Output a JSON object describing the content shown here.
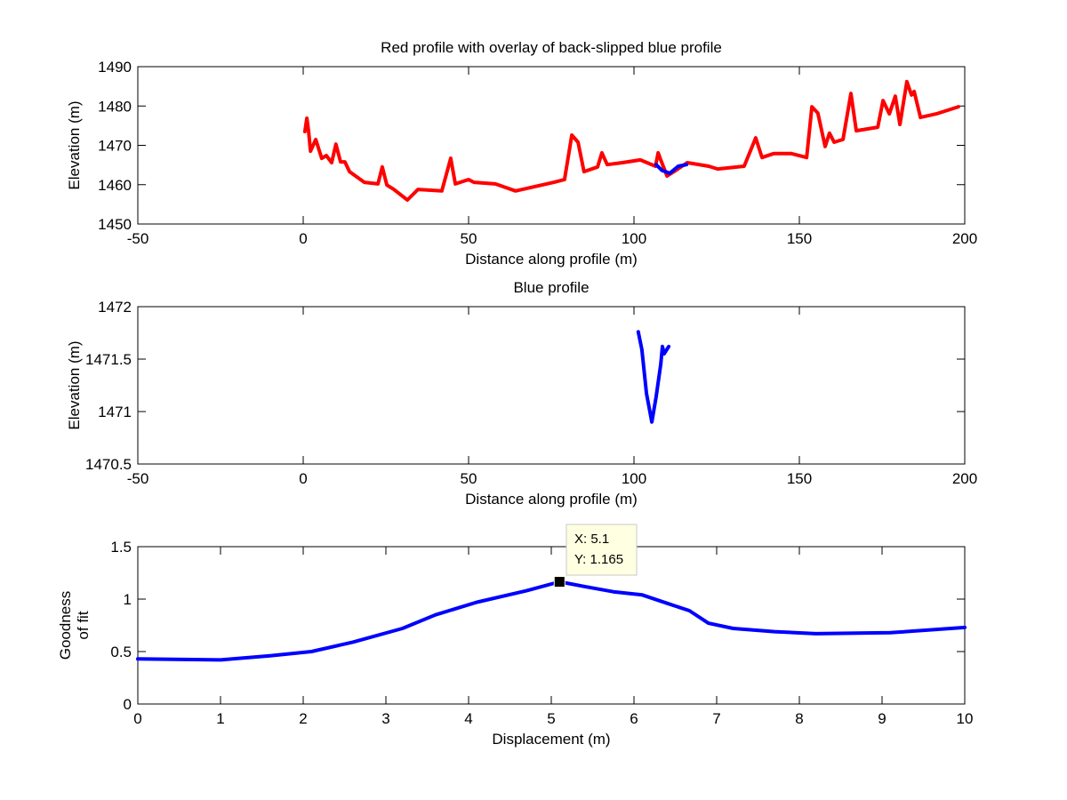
{
  "chart_data": [
    {
      "type": "line",
      "title": "Red profile with overlay of back-slipped blue profile",
      "xlabel": "Distance along profile (m)",
      "ylabel": "Elevation (m)",
      "xlim": [
        -50,
        200
      ],
      "ylim": [
        1450,
        1490
      ],
      "xticks": [
        -50,
        0,
        50,
        100,
        150,
        200
      ],
      "yticks": [
        1450,
        1460,
        1470,
        1480,
        1490
      ],
      "grid": false,
      "series": [
        {
          "name": "red profile",
          "color": "#ff0000",
          "x": [
            0.5,
            1.1,
            1.6,
            2.2,
            3.8,
            5.6,
            7.0,
            8.6,
            9.9,
            11.3,
            12.6,
            14.0,
            18.5,
            22.6,
            23.9,
            25.3,
            27.4,
            31.5,
            34.7,
            41.9,
            44.6,
            46.0,
            50.0,
            51.6,
            58.1,
            64.2,
            75.8,
            79.0,
            81.2,
            83.1,
            84.9,
            89.0,
            90.3,
            91.9,
            96.5,
            101.9,
            106.5,
            107.3,
            108.1,
            110.0,
            112.6,
            116.1,
            122.6,
            125.3,
            133.3,
            136.8,
            138.7,
            142.2,
            147.6,
            152.2,
            153.8,
            155.6,
            157.8,
            159.1,
            160.5,
            163.2,
            165.6,
            167.2,
            173.7,
            175.3,
            177.2,
            179.0,
            180.4,
            182.5,
            183.9,
            184.7,
            186.6,
            191.4,
            198.1
          ],
          "y": [
            1473.5,
            1476.9,
            1473.7,
            1468.5,
            1471.5,
            1466.7,
            1467.4,
            1465.6,
            1470.3,
            1465.8,
            1465.8,
            1463.3,
            1460.6,
            1460.2,
            1464.5,
            1459.9,
            1458.8,
            1456.1,
            1458.8,
            1458.4,
            1466.7,
            1460.2,
            1461.3,
            1460.6,
            1460.2,
            1458.4,
            1460.6,
            1461.3,
            1472.6,
            1470.8,
            1463.3,
            1464.5,
            1468.1,
            1465.1,
            1465.6,
            1466.3,
            1464.7,
            1468.1,
            1466.3,
            1462.2,
            1463.6,
            1465.6,
            1464.7,
            1464.0,
            1464.7,
            1471.9,
            1466.9,
            1467.9,
            1467.9,
            1466.9,
            1479.8,
            1478.2,
            1469.7,
            1473.1,
            1470.8,
            1471.5,
            1483.2,
            1473.7,
            1474.6,
            1481.4,
            1478.0,
            1482.5,
            1475.3,
            1486.2,
            1482.8,
            1483.7,
            1477.1,
            1478.0,
            1479.8
          ]
        },
        {
          "name": "back-slipped blue profile",
          "color": "#0000ff",
          "x": [
            106.7,
            108.5,
            110.8,
            113.4,
            115.9
          ],
          "y": [
            1465.1,
            1463.6,
            1462.9,
            1464.7,
            1465.1
          ]
        }
      ]
    },
    {
      "type": "line",
      "title": "Blue profile",
      "xlabel": "Distance along profile (m)",
      "ylabel": "Elevation (m)",
      "xlim": [
        -50,
        200
      ],
      "ylim": [
        1470.5,
        1472
      ],
      "xticks": [
        -50,
        0,
        50,
        100,
        150,
        200
      ],
      "yticks": [
        1470.5,
        1471,
        1471.5,
        1472
      ],
      "grid": false,
      "series": [
        {
          "name": "blue profile",
          "color": "#0000ff",
          "x": [
            101.3,
            102.4,
            103.8,
            105.4,
            106.7,
            108.1,
            108.6,
            109.1,
            110.5
          ],
          "y": [
            1471.76,
            1471.59,
            1471.17,
            1470.9,
            1471.14,
            1471.45,
            1471.62,
            1471.55,
            1471.62
          ]
        }
      ]
    },
    {
      "type": "line",
      "title": "",
      "xlabel": "Displacement (m)",
      "ylabel": [
        "Goodness",
        "of fit"
      ],
      "xlim": [
        0,
        10
      ],
      "ylim": [
        0,
        1.5
      ],
      "xticks": [
        0,
        1,
        2,
        3,
        4,
        5,
        6,
        7,
        8,
        9,
        10
      ],
      "yticks": [
        0,
        0.5,
        1,
        1.5
      ],
      "grid": false,
      "series": [
        {
          "name": "goodness of fit",
          "color": "#0000ff",
          "x": [
            0,
            1.0,
            1.6,
            2.1,
            2.6,
            3.2,
            3.6,
            4.1,
            4.7,
            5.1,
            5.4,
            5.75,
            6.1,
            6.4,
            6.67,
            6.9,
            7.2,
            7.7,
            8.2,
            9.1,
            10
          ],
          "y": [
            0.43,
            0.42,
            0.46,
            0.5,
            0.59,
            0.72,
            0.85,
            0.97,
            1.08,
            1.165,
            1.12,
            1.07,
            1.04,
            0.96,
            0.89,
            0.77,
            0.72,
            0.69,
            0.67,
            0.68,
            0.73
          ]
        }
      ],
      "datatip": {
        "x": 5.1,
        "y": 1.165,
        "line1": "X: 5.1",
        "line2": "Y: 1.165"
      }
    }
  ]
}
